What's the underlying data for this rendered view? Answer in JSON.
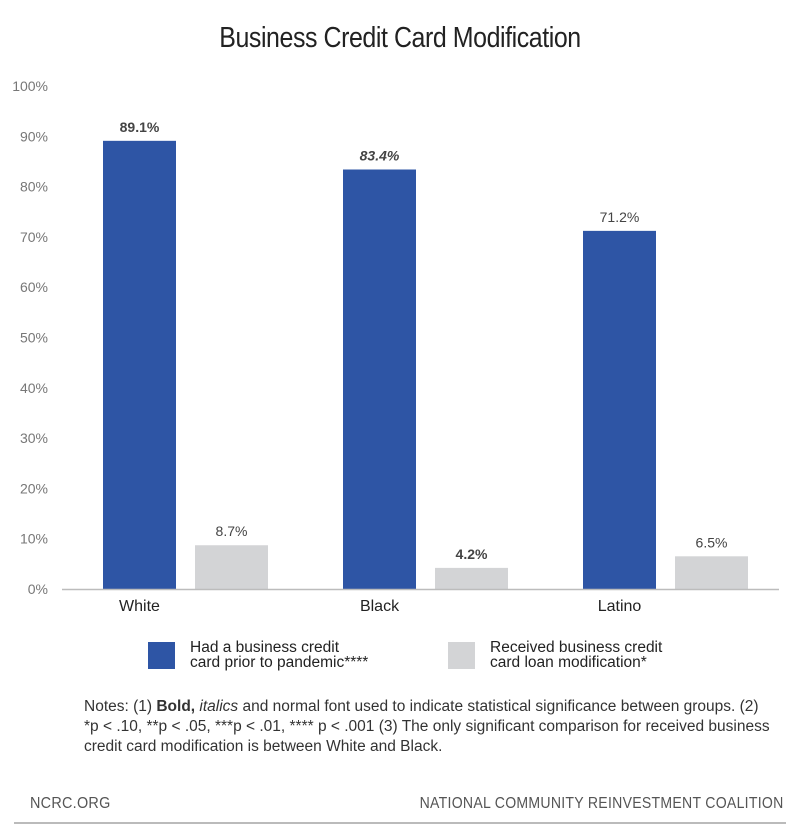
{
  "chart_data": {
    "type": "bar",
    "title": "Business Credit Card Modification",
    "xlabel": "",
    "ylabel": "",
    "ylim": [
      0,
      100
    ],
    "yticks": [
      "0%",
      "10%",
      "20%",
      "30%",
      "40%",
      "50%",
      "60%",
      "70%",
      "80%",
      "90%",
      "100%"
    ],
    "categories": [
      "White",
      "Black",
      "Latino"
    ],
    "series": [
      {
        "name": "Had a business credit card prior to pandemic****",
        "name_lines": [
          "Had a business credit",
          "card prior to pandemic****"
        ],
        "color": "#2e55a5",
        "values": [
          89.1,
          83.4,
          71.2
        ],
        "labels": [
          "89.1%",
          "83.4%",
          "71.2%"
        ],
        "label_styles": [
          "bold",
          "bold-italic",
          "normal"
        ]
      },
      {
        "name": "Received business credit card loan modification*",
        "name_lines": [
          "Received business credit",
          "card loan modification*"
        ],
        "color": "#d3d4d6",
        "values": [
          8.7,
          4.2,
          6.5
        ],
        "labels": [
          "8.7%",
          "4.2%",
          "6.5%"
        ],
        "label_styles": [
          "normal",
          "bold",
          "normal"
        ]
      }
    ],
    "grid": false,
    "legend_position": "bottom"
  },
  "notes": {
    "prefix": "Notes: (1) ",
    "bold_word": "Bold,",
    "italic_word": "italics",
    "rest": " and normal font used to indicate statistical significance between groups.  (2) *p < .10, **p < .05, ***p < .01, **** p < .001   (3) The only significant comparison for received business credit card modification is between White and Black."
  },
  "footer": {
    "left": "NCRC.ORG",
    "right": "NATIONAL COMMUNITY REINVESTMENT COALITION"
  }
}
